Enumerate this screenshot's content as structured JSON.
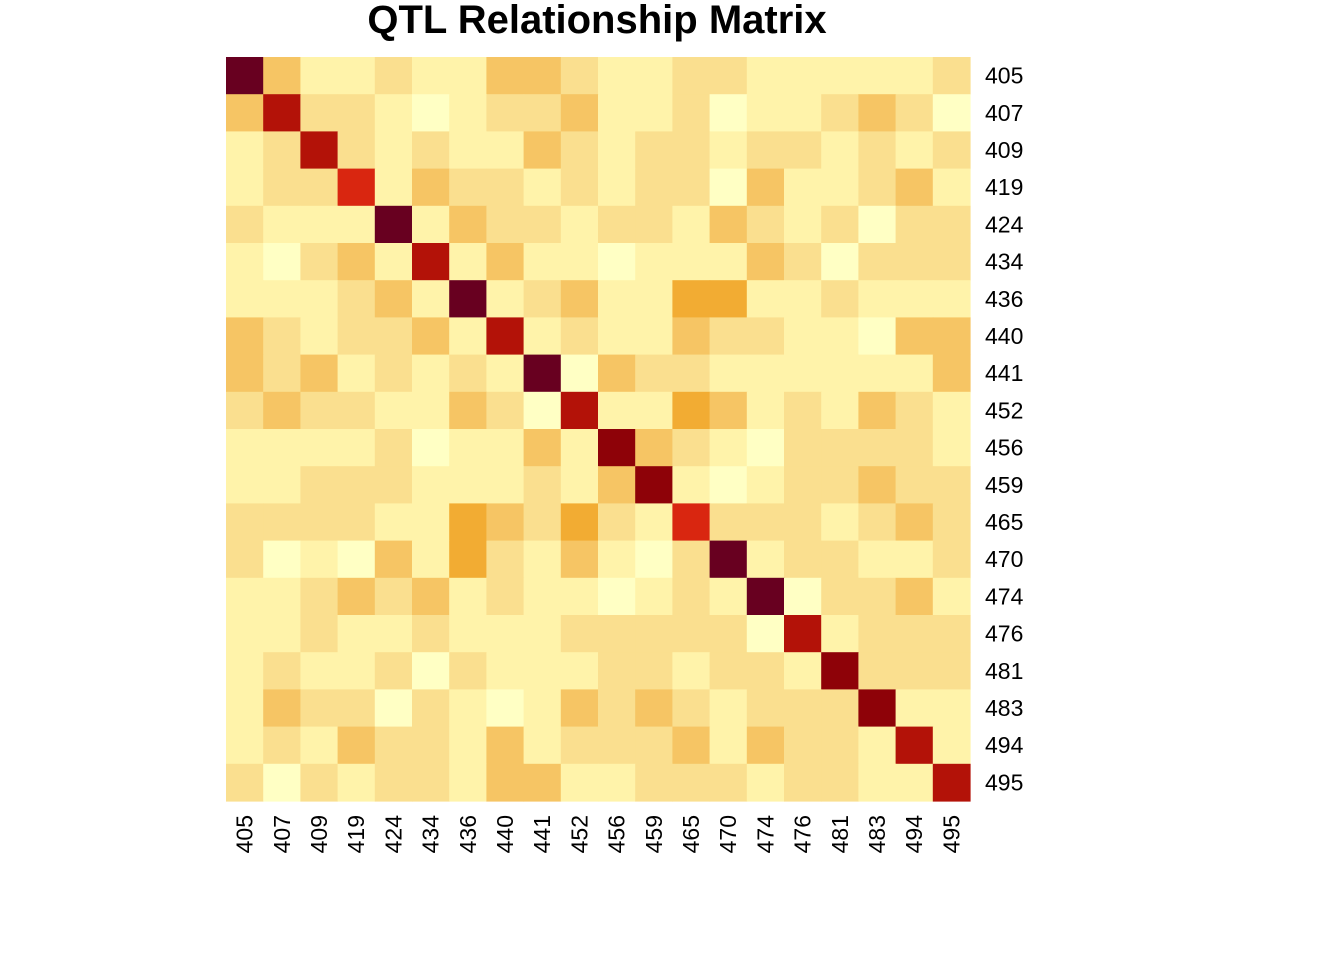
{
  "chart_data": {
    "type": "heatmap",
    "title": "QTL Relationship Matrix",
    "xlabel": "",
    "ylabel": "",
    "labels": [
      "405",
      "407",
      "409",
      "419",
      "424",
      "434",
      "436",
      "440",
      "441",
      "452",
      "456",
      "459",
      "465",
      "470",
      "474",
      "476",
      "481",
      "483",
      "494",
      "495"
    ],
    "color_scale": {
      "levels": [
        0,
        1,
        2,
        3,
        4,
        5,
        6,
        7,
        8
      ],
      "colors": [
        "#FFFFC4",
        "#FFF3AA",
        "#FADF8F",
        "#F6C564",
        "#F2AC33",
        "#D92610",
        "#B31208",
        "#8E0208",
        "#680020"
      ]
    },
    "matrix": [
      [
        8,
        3,
        1,
        1,
        2,
        1,
        1,
        3,
        3,
        2,
        1,
        1,
        2,
        2,
        1,
        1,
        1,
        1,
        1,
        2
      ],
      [
        3,
        6,
        2,
        2,
        1,
        0,
        1,
        2,
        2,
        3,
        1,
        1,
        2,
        0,
        1,
        1,
        2,
        3,
        2,
        0
      ],
      [
        1,
        2,
        6,
        2,
        1,
        2,
        1,
        1,
        3,
        2,
        1,
        2,
        2,
        1,
        2,
        2,
        1,
        2,
        1,
        2
      ],
      [
        1,
        2,
        2,
        5,
        1,
        3,
        2,
        2,
        1,
        2,
        1,
        2,
        2,
        0,
        3,
        1,
        1,
        2,
        3,
        1
      ],
      [
        2,
        1,
        1,
        1,
        8,
        1,
        3,
        2,
        2,
        1,
        2,
        2,
        1,
        3,
        2,
        1,
        2,
        0,
        2,
        2
      ],
      [
        1,
        0,
        2,
        3,
        1,
        6,
        1,
        3,
        1,
        1,
        0,
        1,
        1,
        1,
        3,
        2,
        0,
        2,
        2,
        2
      ],
      [
        1,
        1,
        1,
        2,
        3,
        1,
        8,
        1,
        2,
        3,
        1,
        1,
        4,
        4,
        1,
        1,
        2,
        1,
        1,
        1
      ],
      [
        3,
        2,
        1,
        2,
        2,
        3,
        1,
        6,
        1,
        2,
        1,
        1,
        3,
        2,
        2,
        1,
        1,
        0,
        3,
        3
      ],
      [
        3,
        2,
        3,
        1,
        2,
        1,
        2,
        1,
        8,
        0,
        3,
        2,
        2,
        1,
        1,
        1,
        1,
        1,
        1,
        3
      ],
      [
        2,
        3,
        2,
        2,
        1,
        1,
        3,
        2,
        0,
        6,
        1,
        1,
        4,
        3,
        1,
        2,
        1,
        3,
        2,
        1
      ],
      [
        1,
        1,
        1,
        1,
        2,
        0,
        1,
        1,
        3,
        1,
        7,
        3,
        2,
        1,
        0,
        2,
        2,
        2,
        2,
        1
      ],
      [
        1,
        1,
        2,
        2,
        2,
        1,
        1,
        1,
        2,
        1,
        3,
        7,
        1,
        0,
        1,
        2,
        2,
        3,
        2,
        2
      ],
      [
        2,
        2,
        2,
        2,
        1,
        1,
        4,
        3,
        2,
        4,
        2,
        1,
        5,
        2,
        2,
        2,
        1,
        2,
        3,
        2
      ],
      [
        2,
        0,
        1,
        0,
        3,
        1,
        4,
        2,
        1,
        3,
        1,
        0,
        2,
        8,
        1,
        2,
        2,
        1,
        1,
        2
      ],
      [
        1,
        1,
        2,
        3,
        2,
        3,
        1,
        2,
        1,
        1,
        0,
        1,
        2,
        1,
        8,
        0,
        2,
        2,
        3,
        1
      ],
      [
        1,
        1,
        2,
        1,
        1,
        2,
        1,
        1,
        1,
        2,
        2,
        2,
        2,
        2,
        0,
        6,
        1,
        2,
        2,
        2
      ],
      [
        1,
        2,
        1,
        1,
        2,
        0,
        2,
        1,
        1,
        1,
        2,
        2,
        1,
        2,
        2,
        1,
        7,
        2,
        2,
        2
      ],
      [
        1,
        3,
        2,
        2,
        0,
        2,
        1,
        0,
        1,
        3,
        2,
        3,
        2,
        1,
        2,
        2,
        2,
        7,
        1,
        1
      ],
      [
        1,
        2,
        1,
        3,
        2,
        2,
        1,
        3,
        1,
        2,
        2,
        2,
        3,
        1,
        3,
        2,
        2,
        1,
        6,
        1
      ],
      [
        2,
        0,
        2,
        1,
        2,
        2,
        1,
        3,
        3,
        1,
        1,
        2,
        2,
        2,
        1,
        2,
        2,
        1,
        1,
        6
      ]
    ]
  }
}
